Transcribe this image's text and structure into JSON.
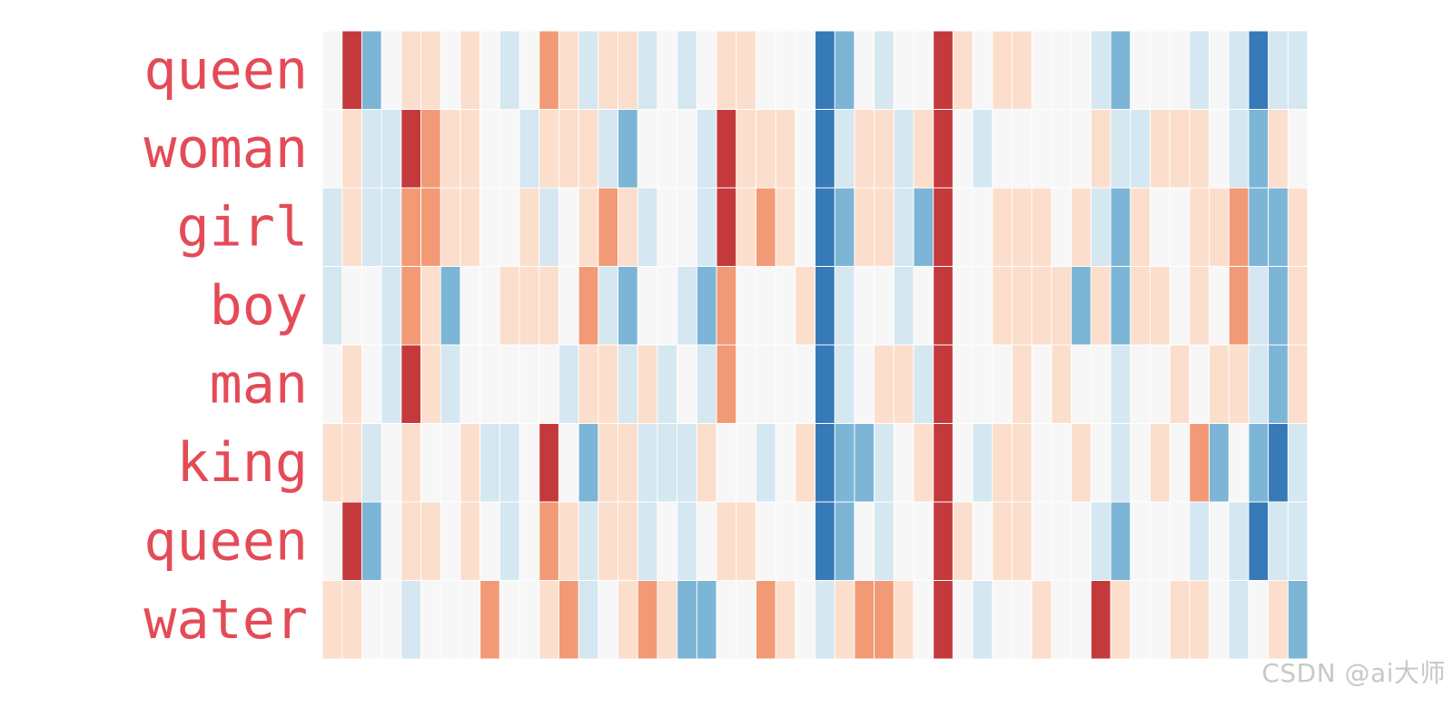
{
  "chart_data": {
    "type": "heatmap",
    "title": "",
    "xlabel": "",
    "ylabel": "",
    "rows": [
      "queen",
      "woman",
      "girl",
      "boy",
      "man",
      "king",
      "queen",
      "water"
    ],
    "value_range": [
      -1,
      1
    ],
    "colormap": [
      "#2166ac",
      "#67a9cf",
      "#d1e5f0",
      "#f7f7f7",
      "#fddbc7",
      "#ef8a62",
      "#b2182b"
    ],
    "label_color": "#e44b57",
    "grid": false,
    "values": [
      [
        0.0,
        0.9,
        -0.6,
        0.0,
        0.3,
        0.3,
        0.0,
        0.3,
        0.0,
        -0.3,
        0.0,
        0.6,
        0.3,
        -0.3,
        0.3,
        0.3,
        -0.3,
        0.0,
        -0.3,
        0.0,
        0.3,
        0.3,
        0.0,
        0.0,
        0.0,
        -0.9,
        -0.6,
        0.0,
        -0.3,
        0.0,
        0.0,
        0.9,
        0.3,
        0.0,
        0.3,
        0.3,
        0.0,
        0.0,
        0.0,
        -0.3,
        -0.6,
        0.0,
        0.0,
        0.0,
        -0.3,
        0.0,
        -0.3,
        -0.9,
        -0.3,
        -0.3
      ],
      [
        0.0,
        0.3,
        -0.3,
        -0.3,
        0.9,
        0.6,
        0.3,
        0.3,
        0.0,
        0.0,
        -0.3,
        0.3,
        0.3,
        0.3,
        -0.3,
        -0.6,
        0.0,
        0.0,
        0.0,
        -0.3,
        0.9,
        0.3,
        0.3,
        0.3,
        0.0,
        -0.9,
        -0.3,
        0.3,
        0.3,
        -0.3,
        0.3,
        0.9,
        0.0,
        -0.3,
        0.0,
        0.0,
        0.0,
        0.0,
        0.0,
        0.3,
        -0.3,
        -0.3,
        0.3,
        0.3,
        0.3,
        0.0,
        -0.3,
        -0.6,
        0.3,
        0.0
      ],
      [
        -0.3,
        0.3,
        -0.3,
        -0.3,
        0.6,
        0.6,
        0.3,
        0.3,
        0.0,
        0.0,
        0.3,
        -0.3,
        0.0,
        0.3,
        0.6,
        0.3,
        -0.3,
        0.0,
        0.0,
        -0.3,
        0.9,
        0.3,
        0.6,
        0.3,
        0.0,
        -0.9,
        -0.6,
        0.3,
        0.3,
        -0.3,
        -0.6,
        0.9,
        0.0,
        0.0,
        0.3,
        0.3,
        0.3,
        0.0,
        0.3,
        -0.3,
        -0.6,
        0.3,
        0.0,
        0.0,
        0.3,
        0.3,
        0.6,
        -0.6,
        -0.6,
        0.3
      ],
      [
        -0.3,
        0.0,
        0.0,
        -0.3,
        0.6,
        0.3,
        -0.6,
        0.0,
        0.0,
        0.3,
        0.3,
        0.3,
        0.0,
        0.6,
        -0.3,
        -0.6,
        0.0,
        0.0,
        -0.3,
        -0.6,
        0.6,
        0.0,
        0.0,
        0.0,
        0.3,
        -0.9,
        -0.3,
        0.0,
        0.0,
        -0.3,
        0.0,
        0.9,
        0.0,
        0.0,
        0.3,
        0.3,
        0.3,
        0.3,
        -0.6,
        0.3,
        -0.6,
        0.3,
        0.3,
        0.0,
        0.3,
        0.0,
        0.6,
        -0.3,
        -0.6,
        0.3
      ],
      [
        0.0,
        0.3,
        0.0,
        -0.3,
        0.9,
        0.3,
        -0.3,
        0.0,
        0.0,
        0.0,
        0.0,
        0.0,
        -0.3,
        0.3,
        0.3,
        -0.3,
        0.3,
        -0.3,
        0.0,
        -0.3,
        0.6,
        0.0,
        0.0,
        0.0,
        0.0,
        -0.9,
        -0.3,
        0.0,
        0.3,
        0.3,
        -0.3,
        0.9,
        0.0,
        0.0,
        0.0,
        0.3,
        0.0,
        0.3,
        0.0,
        0.0,
        -0.3,
        0.0,
        0.0,
        0.3,
        0.0,
        0.3,
        0.3,
        -0.3,
        -0.6,
        0.3
      ],
      [
        0.3,
        0.3,
        -0.3,
        0.0,
        0.3,
        0.0,
        0.0,
        0.3,
        -0.3,
        -0.3,
        0.0,
        0.9,
        0.0,
        -0.6,
        0.3,
        0.3,
        -0.3,
        -0.3,
        -0.3,
        0.3,
        0.0,
        0.0,
        -0.3,
        0.0,
        0.3,
        -0.9,
        -0.6,
        -0.6,
        -0.3,
        0.0,
        0.3,
        0.9,
        0.0,
        -0.3,
        0.3,
        0.3,
        0.0,
        0.0,
        0.3,
        0.0,
        -0.3,
        0.0,
        0.3,
        0.0,
        0.6,
        -0.6,
        0.0,
        -0.6,
        -0.9,
        -0.3
      ],
      [
        0.0,
        0.9,
        -0.6,
        0.0,
        0.3,
        0.3,
        0.0,
        0.3,
        0.0,
        -0.3,
        0.0,
        0.6,
        0.3,
        -0.3,
        0.3,
        0.3,
        -0.3,
        0.0,
        -0.3,
        0.0,
        0.3,
        0.3,
        0.0,
        0.0,
        0.0,
        -0.9,
        -0.6,
        0.0,
        -0.3,
        0.0,
        0.0,
        0.9,
        0.3,
        0.0,
        0.3,
        0.3,
        0.0,
        0.0,
        0.0,
        -0.3,
        -0.6,
        0.0,
        0.0,
        0.0,
        -0.3,
        0.0,
        -0.3,
        -0.9,
        -0.3,
        -0.3
      ],
      [
        0.3,
        0.3,
        0.0,
        0.0,
        -0.3,
        0.0,
        0.0,
        0.0,
        0.6,
        0.0,
        0.0,
        0.3,
        0.6,
        -0.3,
        0.0,
        0.3,
        0.6,
        0.3,
        -0.6,
        -0.6,
        0.0,
        0.0,
        0.6,
        0.3,
        0.0,
        -0.3,
        0.3,
        0.6,
        0.6,
        0.3,
        0.0,
        0.9,
        0.0,
        -0.3,
        0.0,
        0.0,
        0.3,
        0.0,
        0.0,
        0.9,
        0.3,
        0.0,
        0.0,
        0.3,
        0.3,
        0.0,
        -0.3,
        0.0,
        0.3,
        -0.6
      ]
    ]
  },
  "watermark": "CSDN @ai大师"
}
